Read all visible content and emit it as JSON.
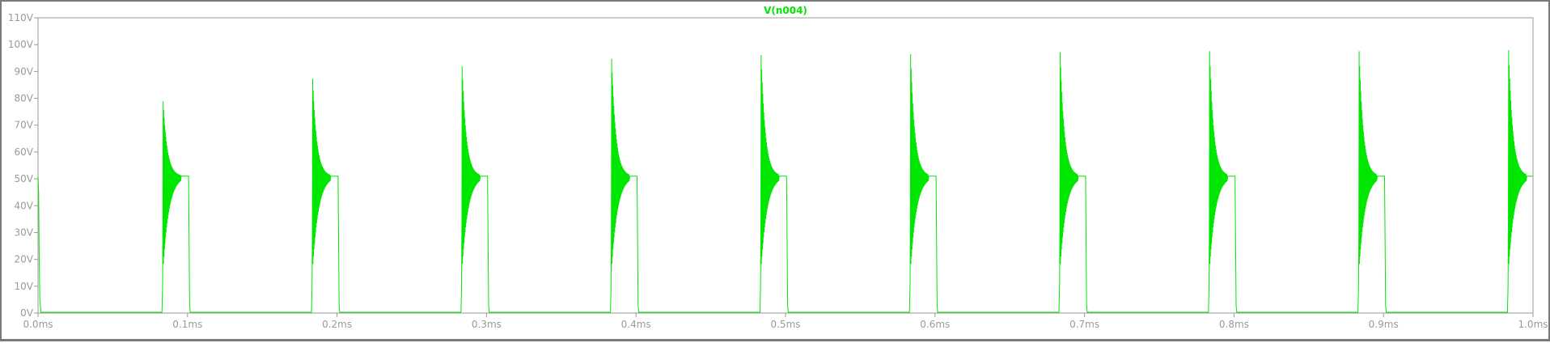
{
  "window": {
    "background": "#ffffff",
    "frame_color": "#7a7a7a",
    "axis_color": "#9a9a9a"
  },
  "chart_data": {
    "type": "line",
    "title": "V(n004)",
    "xlabel": "",
    "ylabel": "",
    "x_unit": "ms",
    "y_unit": "V",
    "xlim": [
      0.0,
      1.0
    ],
    "ylim": [
      0,
      110
    ],
    "x_ticks": [
      "0.0ms",
      "0.1ms",
      "0.2ms",
      "0.3ms",
      "0.4ms",
      "0.5ms",
      "0.6ms",
      "0.7ms",
      "0.8ms",
      "0.9ms",
      "1.0ms"
    ],
    "y_ticks": [
      "0V",
      "10V",
      "20V",
      "30V",
      "40V",
      "50V",
      "60V",
      "70V",
      "80V",
      "90V",
      "100V",
      "110V"
    ],
    "grid": false,
    "series": [
      {
        "name": "V(n004)",
        "color": "#00e600",
        "period_ms": 0.1,
        "pulse_rise_ms": [
          0.0835,
          0.1835,
          0.2835,
          0.3835,
          0.4835,
          0.5835,
          0.6835,
          0.7835,
          0.8835,
          0.9835
        ],
        "pulse_fall_ms": [
          0.101,
          0.201,
          0.301,
          0.401,
          0.501,
          0.601,
          0.701,
          0.801,
          0.901
        ],
        "peak_v": [
          81,
          90,
          95,
          98,
          99.5,
          99.8,
          100.5,
          101,
          101,
          101.5
        ],
        "settle_v": 51,
        "low_v": 0.3,
        "initial_spike_v": 51
      }
    ]
  }
}
